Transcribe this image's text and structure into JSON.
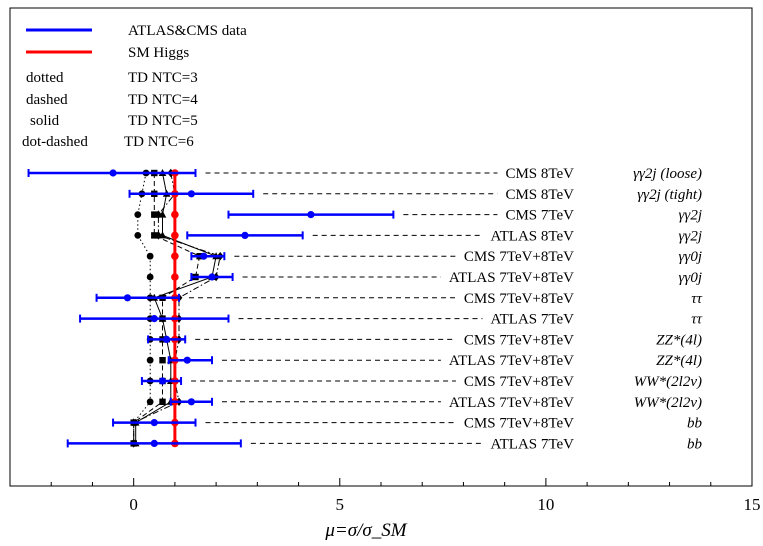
{
  "chart_data": {
    "type": "scatter",
    "title": "",
    "xlabel": "μ=σ/σ_SM",
    "ylabel": "",
    "xlim": [
      -3,
      15
    ],
    "x_ticks": [
      "0",
      "5",
      "10",
      "15"
    ],
    "grid": false,
    "legend": {
      "placement": "top-left",
      "entries": [
        {
          "label": "ATLAS&CMS data",
          "color": "#0000ff"
        },
        {
          "label": "SM Higgs",
          "color": "#ff0000"
        }
      ],
      "styles": [
        {
          "style": "dotted",
          "label": "TD NTC=3"
        },
        {
          "style": "dashed",
          "label": "TD NTC=4"
        },
        {
          "style": "solid",
          "label": "TD NTC=5"
        },
        {
          "style": "dot-dashed",
          "label": "TD NTC=6"
        }
      ]
    },
    "sm_value": 1.0,
    "measurements": [
      {
        "experiment": "CMS 8TeV",
        "channel": "γγ2j (loose)",
        "value": -0.5,
        "low": -2.55,
        "high": 1.5
      },
      {
        "experiment": "CMS 8TeV",
        "channel": "γγ2j (tight)",
        "value": 1.4,
        "low": -0.1,
        "high": 2.9
      },
      {
        "experiment": "CMS 7TeV",
        "channel": "γγ2j",
        "value": 4.3,
        "low": 2.3,
        "high": 6.3
      },
      {
        "experiment": "ATLAS 8TeV",
        "channel": "γγ2j",
        "value": 2.7,
        "low": 1.3,
        "high": 4.1
      },
      {
        "experiment": "CMS 7TeV+8TeV",
        "channel": "γγ0j",
        "value": 1.7,
        "low": 1.4,
        "high": 2.2
      },
      {
        "experiment": "ATLAS 7TeV+8TeV",
        "channel": "γγ0j",
        "value": 1.9,
        "low": 1.4,
        "high": 2.4
      },
      {
        "experiment": "CMS 7TeV+8TeV",
        "channel": "ττ",
        "value": -0.15,
        "low": -0.9,
        "high": 1.1
      },
      {
        "experiment": "ATLAS 7TeV",
        "channel": "ττ",
        "value": 0.5,
        "low": -1.3,
        "high": 2.3
      },
      {
        "experiment": "CMS 7TeV+8TeV",
        "channel": "ZZ*(4l)",
        "value": 0.8,
        "low": 0.35,
        "high": 1.25
      },
      {
        "experiment": "ATLAS 7TeV+8TeV",
        "channel": "ZZ*(4l)",
        "value": 1.3,
        "low": 0.85,
        "high": 1.9
      },
      {
        "experiment": "CMS 7TeV+8TeV",
        "channel": "WW*(2l2ν)",
        "value": 0.7,
        "low": 0.2,
        "high": 1.15
      },
      {
        "experiment": "ATLAS 7TeV+8TeV",
        "channel": "WW*(2l2ν)",
        "value": 1.4,
        "low": 0.9,
        "high": 1.9
      },
      {
        "experiment": "CMS 7TeV+8TeV",
        "channel": "bb",
        "value": 0.5,
        "low": -0.5,
        "high": 1.5
      },
      {
        "experiment": "ATLAS 7TeV",
        "channel": "bb",
        "value": 0.5,
        "low": -1.6,
        "high": 2.6
      }
    ],
    "td_predictions": [
      {
        "ntc": 3,
        "style": "dotted",
        "marker": "circle",
        "values": [
          0.3,
          0.2,
          0.1,
          0.1,
          0.4,
          0.4,
          0.4,
          0.4,
          0.4,
          0.4,
          0.4,
          0.4,
          0.0,
          0.0
        ]
      },
      {
        "ntc": 4,
        "style": "dashed",
        "marker": "square",
        "values": [
          0.5,
          0.5,
          0.5,
          0.5,
          1.6,
          1.5,
          0.7,
          0.7,
          0.7,
          0.7,
          0.7,
          0.7,
          0.0,
          0.0
        ]
      },
      {
        "ntc": 5,
        "style": "solid",
        "marker": "triangle",
        "values": [
          0.7,
          0.8,
          0.7,
          0.7,
          2.0,
          1.9,
          0.5,
          0.7,
          0.8,
          0.9,
          0.9,
          0.9,
          0.05,
          0.05
        ]
      },
      {
        "ntc": 6,
        "style": "dot-dashed",
        "marker": "diamond",
        "values": [
          0.9,
          1.0,
          0.6,
          0.6,
          2.1,
          2.0,
          1.1,
          1.1,
          1.1,
          1.0,
          1.0,
          1.1,
          0.0,
          0.0
        ]
      }
    ],
    "colors": {
      "data": "#0000ff",
      "sm": "#ff0000",
      "td": "#000000"
    }
  }
}
